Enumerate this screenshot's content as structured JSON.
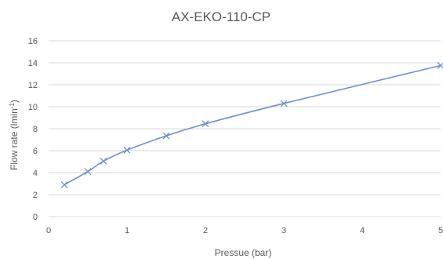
{
  "chart_data": {
    "type": "line",
    "title": "AX-EKO-110-CP",
    "xlabel": "Pressue (bar)",
    "ylabel_main": "Flow rate (lmin",
    "ylabel_sup": "-1",
    "ylabel_close": ")",
    "xlim": [
      0,
      5
    ],
    "ylim": [
      0,
      16
    ],
    "xticks": [
      "0",
      "1",
      "2",
      "3",
      "4",
      "5"
    ],
    "yticks": [
      "0",
      "2",
      "4",
      "6",
      "8",
      "10",
      "12",
      "14",
      "16"
    ],
    "grid": true,
    "legend": "none",
    "marker": "x",
    "line_color": "#6f8fcf",
    "gridline_color": "#d9d9d9",
    "text_color": "#595959",
    "series": [
      {
        "x": [
          0.2,
          0.5,
          0.7,
          1.0,
          1.5,
          2.0,
          3.0,
          5.0
        ],
        "y": [
          2.9,
          4.1,
          5.05,
          6.05,
          7.35,
          8.45,
          10.3,
          13.75
        ]
      }
    ]
  }
}
